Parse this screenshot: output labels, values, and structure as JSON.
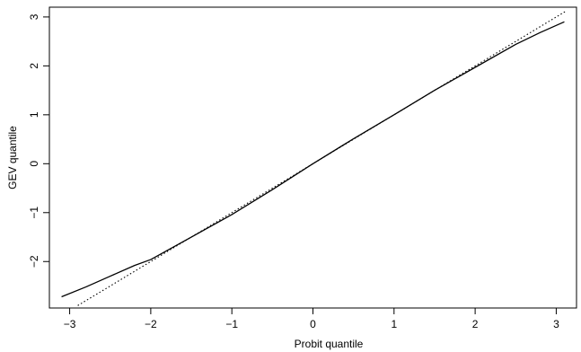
{
  "chart_data": {
    "type": "line",
    "xlabel": "Probit quantile",
    "ylabel": "GEV quantile",
    "xlim": [
      -3.25,
      3.25
    ],
    "ylim": [
      -2.95,
      3.2
    ],
    "grid": false,
    "legend": "none",
    "x_ticks": [
      -3,
      -2,
      -1,
      0,
      1,
      2,
      3
    ],
    "x_tick_labels": [
      "−3",
      "−2",
      "−1",
      "0",
      "1",
      "2",
      "3"
    ],
    "y_ticks": [
      -2,
      -1,
      0,
      1,
      2,
      3
    ],
    "y_tick_labels": [
      "−2",
      "−1",
      "0",
      "1",
      "2",
      "3"
    ],
    "series": [
      {
        "style": "solid",
        "color": "#000000",
        "x": [
          -3.1,
          -2.8,
          -2.5,
          -2.2,
          -2.0,
          -1.5,
          -1.0,
          -0.5,
          0,
          0.5,
          1.0,
          1.5,
          2.0,
          2.5,
          2.8,
          3.1
        ],
        "y": [
          -2.72,
          -2.52,
          -2.3,
          -2.08,
          -1.96,
          -1.5,
          -1.04,
          -0.53,
          0,
          0.51,
          1.0,
          1.5,
          1.97,
          2.44,
          2.68,
          2.9
        ]
      },
      {
        "style": "dotted",
        "color": "#000000",
        "x": [
          -2.9,
          3.12
        ],
        "y": [
          -2.9,
          3.12
        ]
      }
    ]
  }
}
